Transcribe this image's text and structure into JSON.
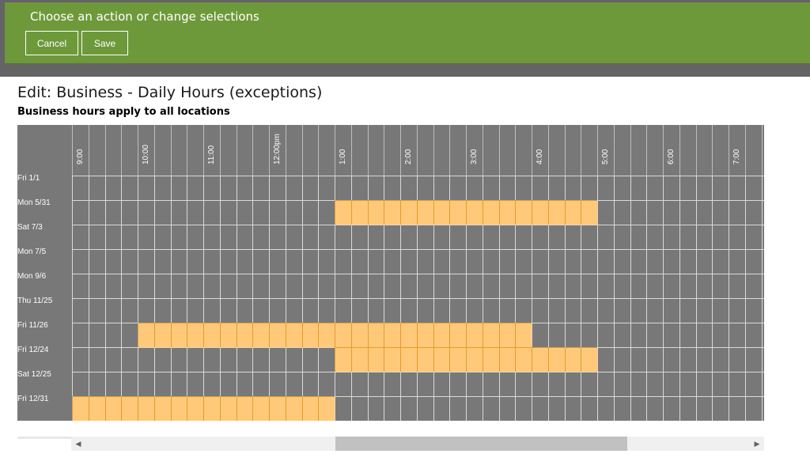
{
  "topbar": {
    "title": "Choose an action or change selections",
    "cancel_label": "Cancel",
    "save_label": "Save",
    "background_color": "#6e993a"
  },
  "page": {
    "title": "Edit: Business - Daily Hours (exceptions)",
    "subtitle": "Business hours apply to all locations"
  },
  "grid": {
    "time_labels": [
      {
        "label": "9:00",
        "slot": 0
      },
      {
        "label": "10:00",
        "slot": 4
      },
      {
        "label": "11:00",
        "slot": 8
      },
      {
        "label": "12:00pm",
        "slot": 12
      },
      {
        "label": "1:00",
        "slot": 16
      },
      {
        "label": "2:00",
        "slot": 20
      },
      {
        "label": "3:00",
        "slot": 24
      },
      {
        "label": "4:00",
        "slot": 28
      },
      {
        "label": "5:00",
        "slot": 32
      },
      {
        "label": "6:00",
        "slot": 36
      },
      {
        "label": "7:00",
        "slot": 40
      }
    ],
    "rows": [
      {
        "label": "Fri 1/1",
        "selected": []
      },
      {
        "label": "Mon 5/31",
        "selected": [
          [
            16,
            31
          ]
        ]
      },
      {
        "label": "Sat 7/3",
        "selected": []
      },
      {
        "label": "Mon 7/5",
        "selected": []
      },
      {
        "label": "Mon 9/6",
        "selected": []
      },
      {
        "label": "Thu 11/25",
        "selected": []
      },
      {
        "label": "Fri 11/26",
        "selected": [
          [
            4,
            27
          ]
        ]
      },
      {
        "label": "Fri 12/24",
        "selected": [
          [
            16,
            31
          ]
        ]
      },
      {
        "label": "Sat 12/25",
        "selected": []
      },
      {
        "label": "Fri 12/31",
        "selected": [
          [
            0,
            15
          ]
        ]
      }
    ],
    "colors": {
      "selected_fill": "#ffc979",
      "selected_border": "#e89b28",
      "cell_fill": "#787878",
      "cell_border": "#d9d9d9"
    }
  }
}
